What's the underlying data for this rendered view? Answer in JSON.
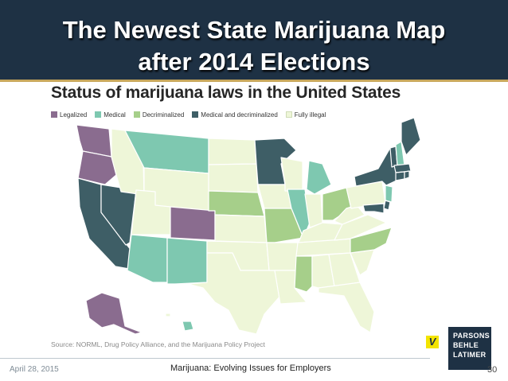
{
  "slide": {
    "title_line1": "The Newest State Marijuana Map",
    "title_line2": "after 2014 Elections"
  },
  "map": {
    "title": "Status of marijuana laws in the United States",
    "legend": [
      {
        "label": "Legalized",
        "color": "#8a6c8f"
      },
      {
        "label": "Medical",
        "color": "#7ec8b0"
      },
      {
        "label": "Decriminalized",
        "color": "#a6cf8a"
      },
      {
        "label": "Medical and decriminalized",
        "color": "#3e5e66"
      },
      {
        "label": "Fully illegal",
        "color": "#eef6d8"
      }
    ],
    "source": "Source: NORML, Drug Policy Alliance, and the Marijuana Policy Project",
    "states": {
      "Legalized": [
        "Washington",
        "Oregon",
        "Colorado",
        "Alaska"
      ],
      "Medical": [
        "Montana",
        "Arizona",
        "New Mexico",
        "Illinois",
        "Michigan",
        "New Jersey",
        "New Hampshire",
        "Hawaii"
      ],
      "Decriminalized": [
        "Nebraska",
        "Missouri",
        "Ohio",
        "North Carolina",
        "Mississippi"
      ],
      "Medical and decriminalized": [
        "California",
        "Nevada",
        "Minnesota",
        "New York",
        "Vermont",
        "Maine",
        "Massachusetts",
        "Rhode Island",
        "Connecticut",
        "Delaware",
        "Maryland"
      ],
      "Fully illegal": [
        "Idaho",
        "Utah",
        "Wyoming",
        "North Dakota",
        "South Dakota",
        "Kansas",
        "Oklahoma",
        "Texas",
        "Iowa",
        "Wisconsin",
        "Arkansas",
        "Louisiana",
        "Indiana",
        "Kentucky",
        "Tennessee",
        "Alabama",
        "Georgia",
        "Florida",
        "South Carolina",
        "Virginia",
        "West Virginia",
        "Pennsylvania"
      ]
    }
  },
  "footer": {
    "date": "April 28, 2015",
    "center": "Marijuana: Evolving Issues for Employers",
    "page": "30"
  },
  "logos": {
    "v_mark": "V",
    "firm_lines": [
      "PARSONS",
      "BEHLE",
      "LATIMER"
    ]
  },
  "colors": {
    "header_bg": "#1e3144",
    "accent_gold": "#c9a85c",
    "legalized": "#8a6c8f",
    "medical": "#7ec8b0",
    "decriminalized": "#a6cf8a",
    "medical_decriminalized": "#3e5e66",
    "fully_illegal": "#eef6d8",
    "border": "#ffffff"
  }
}
